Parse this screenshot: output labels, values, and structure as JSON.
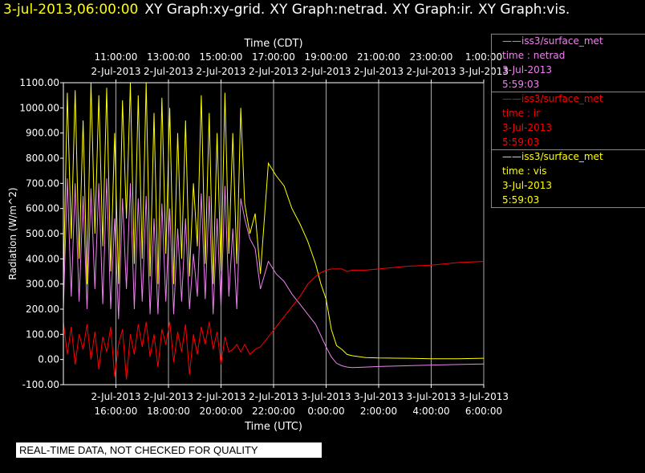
{
  "header": {
    "timestamp": "3-jul-2013,06:00:00",
    "graphs": [
      "XY Graph:xy-grid.",
      "XY Graph:netrad.",
      "XY Graph:ir.",
      "XY Graph:vis."
    ]
  },
  "legend": [
    {
      "line1": "——iss3/surface_met",
      "line2": "time : netrad",
      "line3": "3-Jul-2013",
      "line4": "5:59:03",
      "color": "#ee82ee"
    },
    {
      "line1": "——iss3/surface_met",
      "line2": "time : ir",
      "line3": "3-Jul-2013",
      "line4": "5:59:03",
      "color": "#ff0000"
    },
    {
      "line1": "——iss3/surface_met",
      "line2": "time : vis",
      "line3": "3-Jul-2013",
      "line4": "5:59:03",
      "color": "#ffff00"
    }
  ],
  "disclaimer": "REAL-TIME DATA, NOT CHECKED FOR QUALITY",
  "chart_data": {
    "type": "line",
    "top_axis_label": "Time (CDT)",
    "xlabel": "Time (UTC)",
    "ylabel": "Radiation (W/m^2)",
    "ylim": [
      -100,
      1100
    ],
    "yticks": [
      -100,
      0,
      100,
      200,
      300,
      400,
      500,
      600,
      700,
      800,
      900,
      1000,
      1100
    ],
    "ytick_labels": [
      "-100.00",
      "0.00",
      "100.00",
      "200.00",
      "300.00",
      "400.00",
      "500.00",
      "600.00",
      "700.00",
      "800.00",
      "900.00",
      "1000.00",
      "1100.00"
    ],
    "xlim_hours": [
      14,
      30
    ],
    "bottom_ticks": [
      {
        "h": 16,
        "date": "2-Jul-2013",
        "time": "16:00:00"
      },
      {
        "h": 18,
        "date": "2-Jul-2013",
        "time": "18:00:00"
      },
      {
        "h": 20,
        "date": "2-Jul-2013",
        "time": "20:00:00"
      },
      {
        "h": 22,
        "date": "2-Jul-2013",
        "time": "22:00:00"
      },
      {
        "h": 24,
        "date": "3-Jul-2013",
        "time": "0:00:00"
      },
      {
        "h": 26,
        "date": "3-Jul-2013",
        "time": "2:00:00"
      },
      {
        "h": 28,
        "date": "3-Jul-2013",
        "time": "4:00:00"
      },
      {
        "h": 30,
        "date": "3-Jul-2013",
        "time": "6:00:00"
      }
    ],
    "top_ticks": [
      {
        "h": 16,
        "time": "11:00:00",
        "date": "2-Jul-2013"
      },
      {
        "h": 18,
        "time": "13:00:00",
        "date": "2-Jul-2013"
      },
      {
        "h": 20,
        "time": "15:00:00",
        "date": "2-Jul-2013"
      },
      {
        "h": 22,
        "time": "17:00:00",
        "date": "2-Jul-2013"
      },
      {
        "h": 24,
        "time": "19:00:00",
        "date": "2-Jul-2013"
      },
      {
        "h": 26,
        "time": "21:00:00",
        "date": "2-Jul-2013"
      },
      {
        "h": 28,
        "time": "23:00:00",
        "date": "2-Jul-2013"
      },
      {
        "h": 30,
        "time": "1:00:00",
        "date": "3-Jul-2013"
      }
    ],
    "series": [
      {
        "color": "#ffff00",
        "x": [
          14.0,
          14.15,
          14.3,
          14.45,
          14.6,
          14.75,
          14.9,
          15.05,
          15.2,
          15.35,
          15.5,
          15.65,
          15.8,
          15.95,
          16.1,
          16.25,
          16.4,
          16.55,
          16.7,
          16.85,
          17.0,
          17.15,
          17.3,
          17.45,
          17.6,
          17.75,
          17.9,
          18.05,
          18.2,
          18.35,
          18.5,
          18.65,
          18.8,
          18.95,
          19.1,
          19.25,
          19.4,
          19.55,
          19.7,
          19.85,
          20.0,
          20.15,
          20.3,
          20.45,
          20.6,
          20.75,
          20.9,
          21.1,
          21.3,
          21.5,
          21.8,
          22.1,
          22.4,
          22.7,
          23.0,
          23.3,
          23.6,
          23.8,
          24.0,
          24.2,
          24.4,
          24.6,
          24.8,
          25.0,
          25.5,
          26.0,
          27.0,
          28.0,
          29.0,
          30.0
        ],
        "y": [
          300,
          1060,
          480,
          1070,
          400,
          950,
          300,
          1100,
          500,
          1050,
          450,
          1080,
          350,
          900,
          300,
          1030,
          560,
          1100,
          380,
          1050,
          400,
          1100,
          330,
          980,
          300,
          1040,
          420,
          1000,
          300,
          900,
          400,
          950,
          330,
          700,
          450,
          1050,
          380,
          980,
          300,
          900,
          350,
          1060,
          420,
          900,
          380,
          1000,
          620,
          500,
          580,
          340,
          780,
          730,
          690,
          600,
          540,
          470,
          380,
          300,
          240,
          120,
          55,
          40,
          20,
          15,
          8,
          6,
          5,
          3,
          3,
          5
        ]
      },
      {
        "color": "#ee82ee",
        "x": [
          14.0,
          14.15,
          14.3,
          14.45,
          14.6,
          14.75,
          14.9,
          15.05,
          15.2,
          15.35,
          15.5,
          15.65,
          15.8,
          15.95,
          16.1,
          16.25,
          16.4,
          16.55,
          16.7,
          16.85,
          17.0,
          17.15,
          17.3,
          17.45,
          17.6,
          17.75,
          17.9,
          18.05,
          18.2,
          18.35,
          18.5,
          18.65,
          18.8,
          18.95,
          19.1,
          19.25,
          19.4,
          19.55,
          19.7,
          19.85,
          20.0,
          20.15,
          20.3,
          20.45,
          20.6,
          20.75,
          20.9,
          21.1,
          21.3,
          21.5,
          21.8,
          22.1,
          22.4,
          22.7,
          23.0,
          23.3,
          23.6,
          23.8,
          24.0,
          24.2,
          24.4,
          24.6,
          24.8,
          25.0,
          25.5,
          26.0,
          27.0,
          28.0,
          29.0,
          30.0
        ],
        "y": [
          200,
          720,
          250,
          700,
          230,
          650,
          200,
          680,
          280,
          700,
          220,
          720,
          200,
          560,
          160,
          640,
          280,
          700,
          200,
          640,
          230,
          650,
          180,
          560,
          180,
          620,
          230,
          600,
          180,
          520,
          230,
          560,
          200,
          420,
          250,
          660,
          240,
          650,
          180,
          560,
          210,
          690,
          250,
          520,
          200,
          640,
          560,
          480,
          440,
          280,
          390,
          340,
          310,
          260,
          220,
          180,
          140,
          95,
          50,
          10,
          -15,
          -25,
          -30,
          -32,
          -30,
          -28,
          -25,
          -22,
          -20,
          -18
        ]
      },
      {
        "color": "#ff0000",
        "x": [
          14.0,
          14.15,
          14.3,
          14.45,
          14.6,
          14.75,
          14.9,
          15.05,
          15.2,
          15.35,
          15.5,
          15.65,
          15.8,
          15.95,
          16.1,
          16.25,
          16.4,
          16.55,
          16.7,
          16.85,
          17.0,
          17.15,
          17.3,
          17.45,
          17.6,
          17.75,
          17.9,
          18.05,
          18.2,
          18.35,
          18.5,
          18.65,
          18.8,
          18.95,
          19.1,
          19.25,
          19.4,
          19.55,
          19.7,
          19.85,
          20.0,
          20.15,
          20.3,
          20.45,
          20.6,
          20.75,
          20.9,
          21.1,
          21.3,
          21.5,
          21.8,
          22.1,
          22.4,
          22.7,
          23.0,
          23.3,
          23.6,
          23.8,
          24.0,
          24.2,
          24.4,
          24.6,
          24.8,
          25.0,
          25.5,
          26.0,
          27.0,
          28.0,
          29.0,
          30.0
        ],
        "y": [
          150,
          20,
          130,
          -20,
          100,
          40,
          140,
          0,
          110,
          -40,
          90,
          30,
          130,
          -70,
          60,
          120,
          -80,
          100,
          20,
          140,
          50,
          150,
          10,
          100,
          -30,
          120,
          60,
          150,
          -10,
          110,
          30,
          140,
          -60,
          100,
          20,
          130,
          60,
          150,
          40,
          110,
          -20,
          90,
          30,
          40,
          60,
          30,
          60,
          20,
          40,
          50,
          90,
          130,
          170,
          210,
          250,
          300,
          330,
          345,
          355,
          360,
          360,
          360,
          350,
          355,
          355,
          360,
          370,
          375,
          385,
          390
        ]
      }
    ]
  }
}
